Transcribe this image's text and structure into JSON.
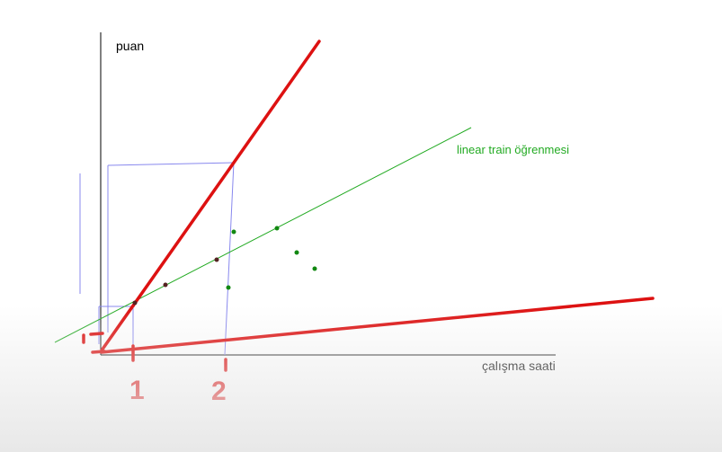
{
  "diagram": {
    "y_axis_label": "puan",
    "x_axis_label": "çalışma saati",
    "green_line_label": "linear train öğrenmesi",
    "handwritten_tick_1": "1",
    "handwritten_tick_2": "2",
    "colors": {
      "axis": "#000000",
      "guide": "#8888ee",
      "green": "#22aa22",
      "red": "#dd1111",
      "dark_point": "#552222",
      "green_point": "#118811"
    },
    "lines": [
      {
        "name": "green-fit-line",
        "kind": "thin",
        "color": "green"
      },
      {
        "name": "red-steep-line",
        "kind": "thick",
        "color": "red"
      },
      {
        "name": "red-shallow-line",
        "kind": "thick",
        "color": "red"
      }
    ],
    "points": [
      {
        "name": "dark-point",
        "color": "dark_point"
      },
      {
        "name": "dark-point",
        "color": "dark_point"
      },
      {
        "name": "dark-point",
        "color": "dark_point"
      },
      {
        "name": "green-point",
        "color": "green_point"
      },
      {
        "name": "green-point",
        "color": "green_point"
      },
      {
        "name": "green-point",
        "color": "green_point"
      },
      {
        "name": "green-point",
        "color": "green_point"
      },
      {
        "name": "green-point",
        "color": "green_point"
      }
    ]
  }
}
